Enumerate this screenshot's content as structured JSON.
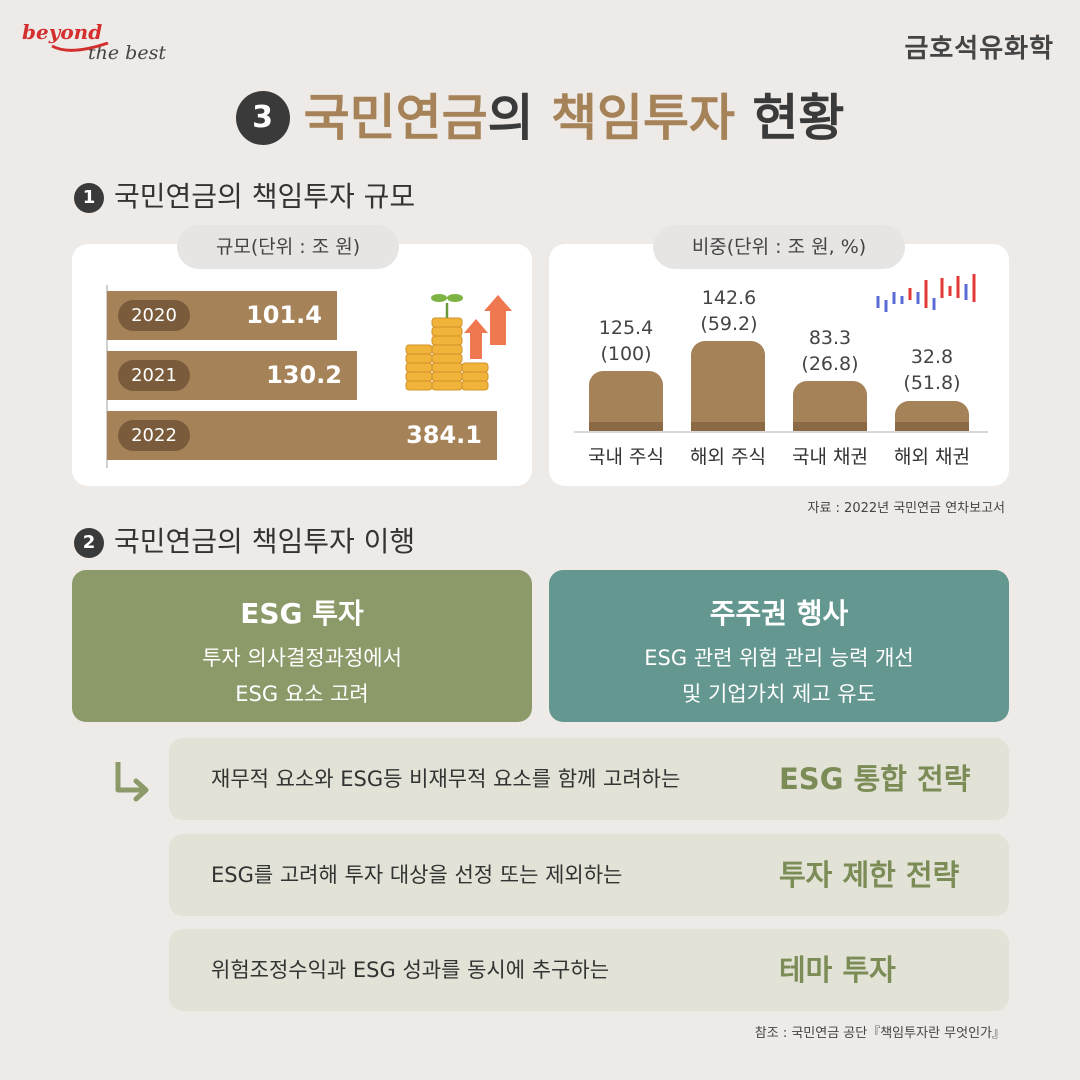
{
  "header": {
    "logo_line1": "beyond",
    "logo_line2": "the best",
    "brand": "금호석유화학"
  },
  "title": {
    "number": "3",
    "part1": "국민연금",
    "part2": "의 ",
    "part3": "책임투자",
    "part4": " 현황"
  },
  "section1": {
    "number": "1",
    "heading": "국민연금의 책임투자 규모",
    "scale": {
      "pill": "규모(단위 : 조 원)",
      "bars": [
        {
          "year": "2020",
          "value": "101.4"
        },
        {
          "year": "2021",
          "value": "130.2"
        },
        {
          "year": "2022",
          "value": "384.1"
        }
      ]
    },
    "ratio": {
      "pill": "비중(단위 : 조 원, %)",
      "items": [
        {
          "category": "국내 주식",
          "amount": "125.4",
          "ratio": "(100)"
        },
        {
          "category": "해외 주식",
          "amount": "142.6",
          "ratio": "(59.2)"
        },
        {
          "category": "국내 채권",
          "amount": "83.3",
          "ratio": "(26.8)"
        },
        {
          "category": "해외 채권",
          "amount": "32.8",
          "ratio": "(51.8)"
        }
      ]
    },
    "source": "자료 : 2022년 국민연금 연차보고서"
  },
  "section2": {
    "number": "2",
    "heading": "국민연금의 책임투자 이행",
    "cards": [
      {
        "title": "ESG 투자",
        "line1": "투자 의사결정과정에서",
        "line2": "ESG 요소 고려"
      },
      {
        "title": "주주권 행사",
        "line1": "ESG 관련 위험 관리 능력 개선",
        "line2": "및 기업가치 제고 유도"
      }
    ],
    "strategies": [
      {
        "text": "재무적 요소와 ESG등 비재무적 요소를 함께 고려하는",
        "name": "ESG 통합 전략"
      },
      {
        "text": "ESG를 고려해 투자 대상을 선정 또는 제외하는",
        "name": "투자 제한 전략"
      },
      {
        "text": "위험조정수익과 ESG 성과를 동시에 추구하는",
        "name": "테마 투자"
      }
    ],
    "reference": "참조 : 국민연금 공단『책임투자란 무엇인가』"
  },
  "colors": {
    "background": "#eeeae7",
    "brown": "#a68258",
    "dark_brown": "#7a5c3c",
    "olive": "#8c9a6a",
    "teal": "#64978f",
    "strategy_bg": "#e2e2d6",
    "strategy_text": "#7b8c56",
    "logo_red": "#d32f2f"
  },
  "icons": [
    "coin-stack-sprout-icon",
    "up-arrows-icon",
    "candlestick-chart-icon",
    "turn-right-arrow-icon"
  ]
}
